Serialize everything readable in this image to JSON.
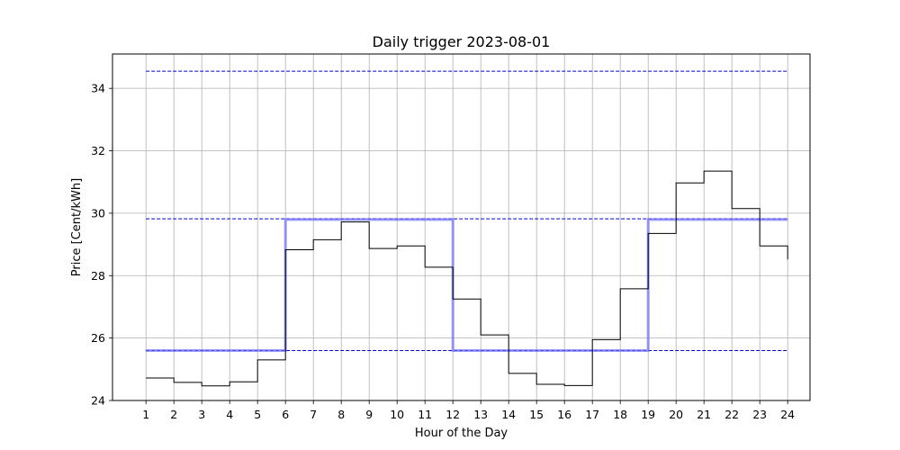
{
  "chart_data": {
    "type": "line",
    "title": "Daily trigger 2023-08-01",
    "xlabel": "Hour of the Day",
    "ylabel": "Price [Cent/kWh]",
    "xlim": [
      -0.2,
      24.8
    ],
    "ylim": [
      24.0,
      35.1
    ],
    "grid": true,
    "xticks": [
      1,
      2,
      3,
      4,
      5,
      6,
      7,
      8,
      9,
      10,
      11,
      12,
      13,
      14,
      15,
      16,
      17,
      18,
      19,
      20,
      21,
      22,
      23,
      24
    ],
    "yticks": [
      24,
      26,
      28,
      30,
      32,
      34
    ],
    "hours": [
      1,
      2,
      3,
      4,
      5,
      6,
      7,
      8,
      9,
      10,
      11,
      12,
      13,
      14,
      15,
      16,
      17,
      18,
      19,
      20,
      21,
      22,
      23,
      24
    ],
    "series": [
      {
        "style": "step",
        "color": "#000000",
        "values": [
          24.72,
          24.58,
          24.47,
          24.6,
          25.3,
          28.83,
          29.15,
          29.72,
          28.87,
          28.95,
          28.27,
          27.25,
          26.1,
          24.87,
          24.52,
          24.48,
          25.95,
          27.58,
          29.35,
          30.97,
          31.35,
          30.15,
          28.95,
          28.52
        ]
      },
      {
        "style": "step",
        "color": "#6f6fff",
        "values": [
          25.6,
          25.6,
          25.6,
          25.6,
          25.6,
          29.8,
          29.8,
          29.8,
          29.8,
          29.8,
          29.8,
          25.6,
          25.6,
          25.6,
          25.6,
          25.6,
          25.6,
          25.6,
          29.8,
          29.8,
          29.8,
          29.8,
          29.8,
          29.8
        ]
      }
    ],
    "hlines": [
      {
        "y": 34.55,
        "color": "#0000cc"
      },
      {
        "y": 29.82,
        "color": "#0000cc"
      },
      {
        "y": 25.6,
        "color": "#0000cc"
      }
    ]
  }
}
